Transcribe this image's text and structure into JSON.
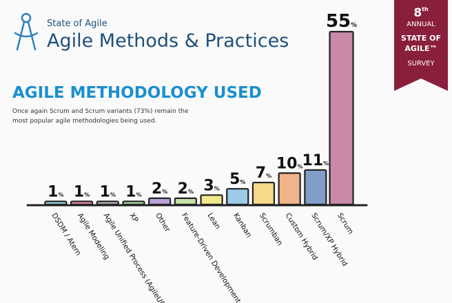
{
  "header": {
    "kicker": "State of Agile",
    "title": "Agile Methods & Practices"
  },
  "badge": {
    "number": "8",
    "suffix": "th",
    "lines": [
      "ANNUAL",
      "STATE OF",
      "AGILE™",
      "SURVEY"
    ]
  },
  "chart_data": {
    "type": "bar",
    "title": "AGILE METHODOLOGY USED",
    "subtitle": [
      "Once again Scrum and Scrum variants (73%) remain the",
      "most popular agile methodologies being used."
    ],
    "categories": [
      "DSDM / Atern",
      "Agile Modeling",
      "Agile Unified Process (AgileUP)",
      "XP",
      "Other",
      "Feature-Driven Development",
      "Lean",
      "Kanban",
      "Scrumban",
      "Custom Hybrid",
      "Scrum/XP Hybrid",
      "Scrum"
    ],
    "values": [
      1,
      1,
      1,
      1,
      2,
      2,
      3,
      5,
      7,
      10,
      11,
      55
    ],
    "value_labels": [
      "1%",
      "1%",
      "1%",
      "1%",
      "2%",
      "2%",
      "3%",
      "5%",
      "7%",
      "10%",
      "11%",
      "55%"
    ],
    "colors": [
      "#8fd3d8",
      "#e38fa0",
      "#b4b4b4",
      "#a8d8a0",
      "#b9a3d8",
      "#c8e0a8",
      "#f2e88a",
      "#9ccbe8",
      "#f8d88a",
      "#f2b48a",
      "#7f9fc8",
      "#c88aa8"
    ]
  }
}
